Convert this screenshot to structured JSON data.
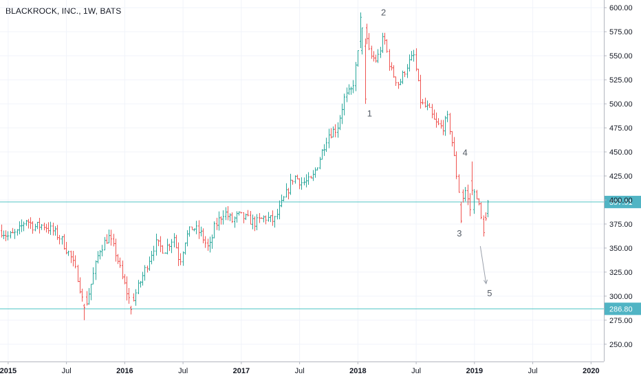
{
  "chart_data": {
    "type": "ohlc",
    "title": "BLACKROCK, INC., 1W, BATS",
    "y_ticks": [
      250,
      275,
      300,
      325,
      350,
      375,
      400,
      425,
      450,
      475,
      500,
      525,
      550,
      575,
      600
    ],
    "y_tick_labels": [
      "250.00",
      "275.00",
      "300.00",
      "325.00",
      "350.00",
      "375.00",
      "400.00",
      "425.00",
      "450.00",
      "475.00",
      "500.00",
      "525.00",
      "550.00",
      "575.00",
      "600.00"
    ],
    "ylim": [
      232,
      608
    ],
    "x_ticks": [
      {
        "date": 2015.0,
        "label": "2015",
        "bold": true
      },
      {
        "date": 2015.5,
        "label": "Jul",
        "bold": false
      },
      {
        "date": 2016.0,
        "label": "2016",
        "bold": true
      },
      {
        "date": 2016.5,
        "label": "Jul",
        "bold": false
      },
      {
        "date": 2017.0,
        "label": "2017",
        "bold": true
      },
      {
        "date": 2017.5,
        "label": "Jul",
        "bold": false
      },
      {
        "date": 2018.0,
        "label": "2018",
        "bold": true
      },
      {
        "date": 2018.5,
        "label": "Jul",
        "bold": false
      },
      {
        "date": 2019.0,
        "label": "2019",
        "bold": true
      },
      {
        "date": 2019.5,
        "label": "Jul",
        "bold": false
      },
      {
        "date": 2020.0,
        "label": "2020",
        "bold": true
      }
    ],
    "xlim": [
      2014.93,
      2020.11
    ],
    "price_path": [
      [
        2014.94,
        368
      ],
      [
        2015.0,
        362
      ],
      [
        2015.08,
        366
      ],
      [
        2015.15,
        380
      ],
      [
        2015.22,
        372
      ],
      [
        2015.3,
        374
      ],
      [
        2015.38,
        368
      ],
      [
        2015.45,
        360
      ],
      [
        2015.53,
        342
      ],
      [
        2015.6,
        318
      ],
      [
        2015.65,
        285
      ],
      [
        2015.7,
        308
      ],
      [
        2015.78,
        348
      ],
      [
        2015.86,
        362
      ],
      [
        2015.93,
        342
      ],
      [
        2015.98,
        318
      ],
      [
        2016.05,
        292
      ],
      [
        2016.1,
        305
      ],
      [
        2016.18,
        330
      ],
      [
        2016.26,
        355
      ],
      [
        2016.34,
        348
      ],
      [
        2016.42,
        362
      ],
      [
        2016.47,
        335
      ],
      [
        2016.52,
        360
      ],
      [
        2016.58,
        372
      ],
      [
        2016.65,
        365
      ],
      [
        2016.72,
        348
      ],
      [
        2016.77,
        372
      ],
      [
        2016.85,
        388
      ],
      [
        2016.92,
        378
      ],
      [
        2016.97,
        384
      ],
      [
        2017.05,
        380
      ],
      [
        2017.12,
        376
      ],
      [
        2017.2,
        382
      ],
      [
        2017.28,
        378
      ],
      [
        2017.36,
        400
      ],
      [
        2017.45,
        425
      ],
      [
        2017.52,
        418
      ],
      [
        2017.6,
        420
      ],
      [
        2017.66,
        440
      ],
      [
        2017.74,
        468
      ],
      [
        2017.82,
        475
      ],
      [
        2017.88,
        505
      ],
      [
        2017.95,
        515
      ],
      [
        2018.04,
        585
      ],
      [
        2018.1,
        550
      ],
      [
        2018.16,
        545
      ],
      [
        2018.22,
        570
      ],
      [
        2018.28,
        535
      ],
      [
        2018.35,
        520
      ],
      [
        2018.42,
        540
      ],
      [
        2018.48,
        550
      ],
      [
        2018.54,
        500
      ],
      [
        2018.6,
        495
      ],
      [
        2018.66,
        480
      ],
      [
        2018.72,
        475
      ],
      [
        2018.77,
        485
      ],
      [
        2018.8,
        465
      ],
      [
        2018.84,
        430
      ],
      [
        2018.88,
        395
      ],
      [
        2018.92,
        410
      ],
      [
        2018.96,
        390
      ],
      [
        2019.0,
        408
      ],
      [
        2019.02,
        405
      ],
      [
        2019.05,
        382
      ],
      [
        2019.08,
        372
      ],
      [
        2019.11,
        398
      ]
    ],
    "highlight_bars": [
      {
        "date": 2015.65,
        "open": 290,
        "high": 292,
        "low": 275,
        "close": 288
      },
      {
        "date": 2016.05,
        "open": 288,
        "high": 290,
        "low": 281,
        "close": 286
      },
      {
        "date": 2018.02,
        "open": 565,
        "high": 595,
        "low": 558,
        "close": 590
      },
      {
        "date": 2018.06,
        "open": 560,
        "high": 568,
        "low": 500,
        "close": 505
      },
      {
        "date": 2018.88,
        "open": 395,
        "high": 398,
        "low": 376,
        "close": 378
      },
      {
        "date": 2018.98,
        "open": 420,
        "high": 440,
        "low": 405,
        "close": 410
      },
      {
        "date": 2019.08,
        "open": 380,
        "high": 384,
        "low": 362,
        "close": 366
      },
      {
        "date": 2019.11,
        "open": 386,
        "high": 400,
        "low": 382,
        "close": 398
      }
    ],
    "horizontal_lines": [
      {
        "price": 397.91,
        "label": "397.91",
        "color": "#50c4c4"
      },
      {
        "price": 286.8,
        "label": "286.80",
        "color": "#50c4c4"
      }
    ],
    "wave_labels": [
      {
        "text": "1",
        "date": 2018.1,
        "price": 487
      },
      {
        "text": "2",
        "date": 2018.22,
        "price": 592
      },
      {
        "text": "3",
        "date": 2018.87,
        "price": 362
      },
      {
        "text": "4",
        "date": 2018.92,
        "price": 446
      },
      {
        "text": "5",
        "date": 2019.13,
        "price": 300
      }
    ],
    "arrow": {
      "from": {
        "date": 2019.05,
        "price": 352
      },
      "to": {
        "date": 2019.1,
        "price": 313
      }
    },
    "colors": {
      "up": "#26a69a",
      "down": "#ef5350",
      "grid": "#f0f3fa",
      "axis": "#131722",
      "hline": "#50c4c4",
      "badge": "#50b4c4",
      "arrow": "#9aa0ab"
    }
  }
}
